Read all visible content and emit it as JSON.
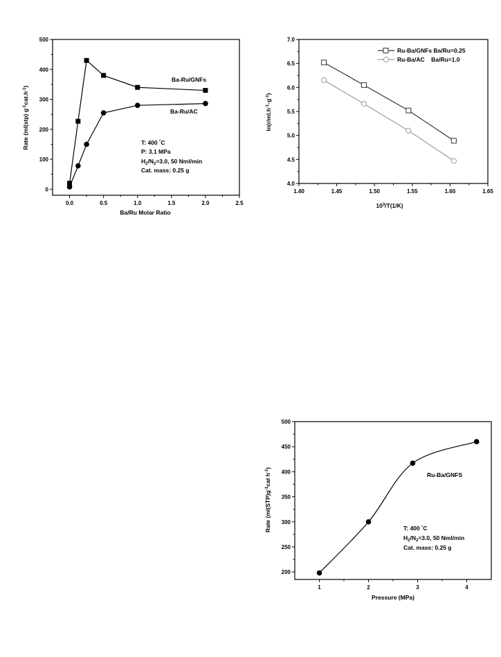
{
  "chart_data": [
    {
      "type": "line",
      "xlabel": "Ba/Ru Molar Ratio",
      "ylabel": "Rate (ml(stp) g-1cat.h-1)",
      "ylabel_parts": [
        "Rate (ml(stp) g",
        "-1",
        "cat.h",
        "-1",
        ")"
      ],
      "xlim": [
        -0.25,
        2.5
      ],
      "ylim": [
        -20,
        500
      ],
      "xticks": [
        "0.0",
        "0.5",
        "1.0",
        "1.5",
        "2.0",
        "2.5"
      ],
      "yticks": [
        "0",
        "100",
        "200",
        "300",
        "400",
        "500"
      ],
      "series": [
        {
          "name": "Ba-Ru/GNFs",
          "marker": "square",
          "x": [
            0.0,
            0.125,
            0.25,
            0.5,
            1.0,
            2.0
          ],
          "y": [
            20,
            227,
            430,
            380,
            340,
            330
          ]
        },
        {
          "name": "Ba-Ru/AC",
          "marker": "circle",
          "x": [
            0.0,
            0.125,
            0.25,
            0.5,
            1.0,
            2.0
          ],
          "y": [
            8,
            78,
            150,
            255,
            280,
            286
          ]
        }
      ],
      "conditions": [
        "T: 400 °C",
        "P: 3.1 MPa",
        "H2/N2=3.0, 50 Nml/min",
        "Cat. mass: 0.25 g"
      ]
    },
    {
      "type": "line",
      "xlabel": "10^3/T(1/K)",
      "xlabel_parts": [
        "10",
        "3",
        "/T(1/K)"
      ],
      "ylabel": "ln(r/ml.h-1.g-1)",
      "ylabel_parts": [
        "ln(r/ml.h",
        "-1",
        "·g",
        "-1",
        ")"
      ],
      "xlim": [
        1.4,
        1.65
      ],
      "ylim": [
        4.0,
        7.0
      ],
      "xticks": [
        "1.40",
        "1.45",
        "1.50",
        "1.55",
        "1.60",
        "1.65"
      ],
      "yticks": [
        "4.0",
        "4.5",
        "5.0",
        "5.5",
        "6.0",
        "6.5",
        "7.0"
      ],
      "legend": "top-right",
      "series": [
        {
          "name": "Ru-Ba/GNFs Ba/Ru=0.25",
          "marker": "open-square",
          "color": "#333333",
          "x": [
            1.433,
            1.486,
            1.545,
            1.605
          ],
          "y": [
            6.52,
            6.05,
            5.52,
            4.89
          ]
        },
        {
          "name": "Ru-Ba/AC    Ba/Ru=1.0",
          "marker": "open-circle",
          "color": "#9a9a9a",
          "x": [
            1.433,
            1.486,
            1.545,
            1.605
          ],
          "y": [
            6.15,
            5.66,
            5.1,
            4.47
          ]
        }
      ]
    },
    {
      "type": "line",
      "xlabel": "Pressure (MPa)",
      "ylabel": "Rate (ml(STP)g-1cat h-1)",
      "ylabel_parts": [
        "Rate (ml(STP)g",
        "-1",
        "cat h",
        "-1",
        ")"
      ],
      "xlim": [
        0.5,
        4.5
      ],
      "ylim": [
        185,
        500
      ],
      "xticks": [
        "1",
        "2",
        "3",
        "4"
      ],
      "yticks": [
        "200",
        "250",
        "300",
        "350",
        "400",
        "450",
        "500"
      ],
      "series": [
        {
          "name": "Ru-Ba/GNFS",
          "marker": "circle",
          "smooth": true,
          "x": [
            1.0,
            2.0,
            2.9,
            4.2
          ],
          "y": [
            198,
            300,
            417,
            460
          ]
        }
      ],
      "conditions": [
        "T: 400 °C",
        "H2/N2=3.0, 50 Nml/min",
        "Cat. mass: 0.25 g"
      ]
    }
  ]
}
